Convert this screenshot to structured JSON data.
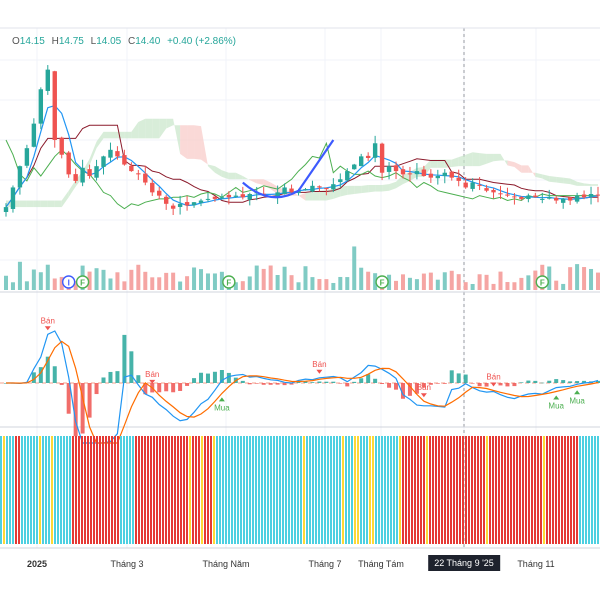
{
  "header": {
    "open_label": "O",
    "open": "14.15",
    "high_label": "H",
    "high": "14.75",
    "low_label": "L",
    "low": "14.05",
    "close_label": "C",
    "close": "14.40",
    "change": "+0.40 (+2.86%)"
  },
  "colors": {
    "up": "#26a69a",
    "down": "#ef5350",
    "ma_blue": "#2196f3",
    "baseline_maroon": "#8b1a2b",
    "lagging_green": "#4caf50",
    "cloud_red": "#f8c9c6",
    "cloud_green": "#c8e6c9",
    "pattern_arc": "#3d5afe",
    "macd_line": "#2196f3",
    "signal_line": "#ff6d00",
    "strip_red": "#e53935",
    "strip_cyan": "#4dd0e1",
    "strip_yellow": "#fdd835"
  },
  "chart_data": {
    "type": "candlestick",
    "x_axis_labels": [
      "2025",
      "Tháng 3",
      "Tháng Năm",
      "Tháng 7",
      "Tháng Tám",
      "Tháng 11"
    ],
    "crosshair_label": "22 Tháng 9 '25",
    "event_markers": [
      {
        "label": "I",
        "color": "#3d5afe",
        "index": 9
      },
      {
        "label": "F",
        "color": "#4caf50",
        "index": 11
      },
      {
        "label": "F",
        "color": "#4caf50",
        "index": 32
      },
      {
        "label": "F",
        "color": "#4caf50",
        "index": 54
      },
      {
        "label": "F",
        "color": "#4caf50",
        "index": 77
      }
    ],
    "macd_signals": [
      {
        "label": "Bán",
        "type": "sell",
        "index": 6
      },
      {
        "label": "Bán",
        "type": "sell",
        "index": 21
      },
      {
        "label": "Mua",
        "type": "buy",
        "index": 31
      },
      {
        "label": "Bán",
        "type": "sell",
        "index": 45
      },
      {
        "label": "Bán",
        "type": "sell",
        "index": 60
      },
      {
        "label": "Bán",
        "type": "sell",
        "index": 70
      },
      {
        "label": "Mua",
        "type": "buy",
        "index": 79
      },
      {
        "label": "Mua",
        "type": "buy",
        "index": 82
      }
    ],
    "price_close": [
      14.4,
      15.6,
      16.9,
      18.0,
      19.5,
      21.6,
      22.8,
      18.5,
      17.6,
      16.4,
      16.0,
      16.8,
      16.3,
      16.9,
      17.5,
      17.9,
      17.5,
      17.0,
      16.6,
      16.4,
      15.9,
      15.3,
      15.1,
      14.6,
      14.3,
      14.6,
      14.5,
      14.7,
      14.8,
      14.9,
      14.9,
      15.0,
      15.0,
      15.1,
      15.0,
      15.2,
      15.3,
      15.2,
      15.0,
      15.3,
      15.6,
      15.3,
      15.4,
      15.5,
      15.7,
      15.6,
      15.5,
      15.8,
      16.1,
      16.6,
      17.0,
      17.5,
      17.4,
      18.3,
      16.5,
      16.9,
      16.6,
      16.4,
      16.4,
      16.6,
      16.3,
      16.2,
      16.3,
      16.5,
      16.2,
      16.0,
      15.6,
      15.9,
      15.7,
      15.4,
      15.3,
      15.2,
      15.1,
      15.0,
      14.9,
      15.1,
      15.0,
      14.9,
      15.0,
      14.8,
      14.9,
      14.8,
      15.1,
      15.0,
      15.2,
      15.1
    ],
    "price_ohlc_note": "open/high/low derived per bar in script from close values"
  }
}
